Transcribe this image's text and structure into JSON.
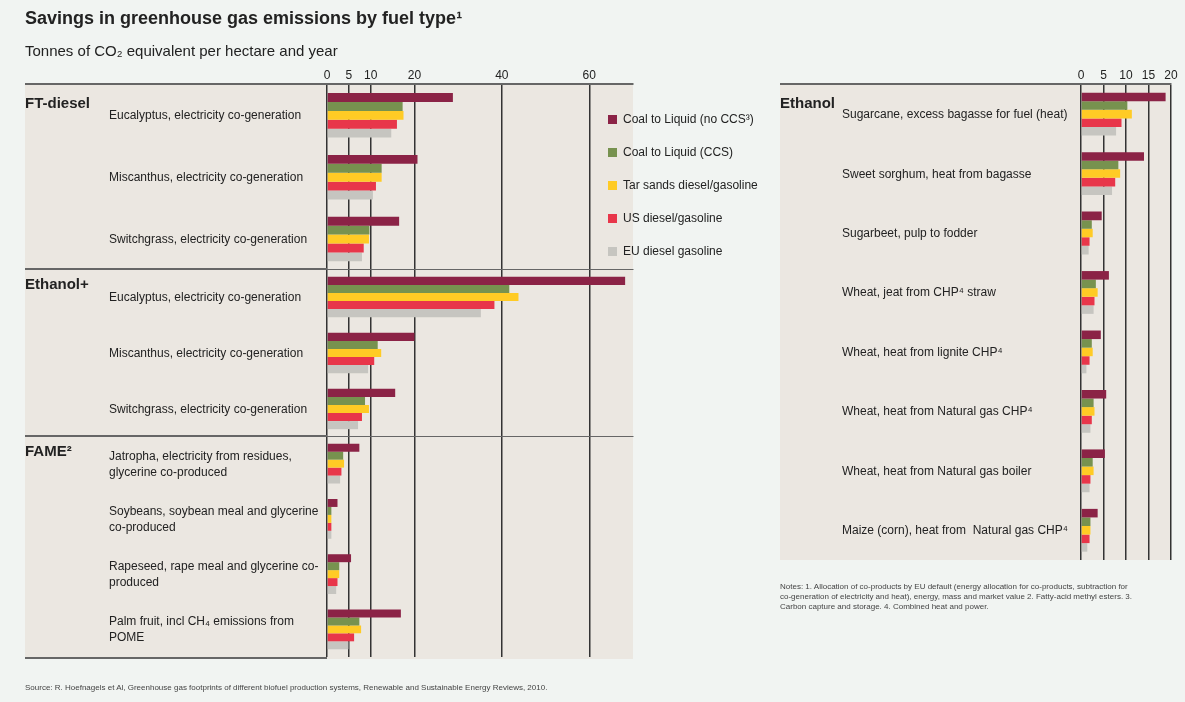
{
  "chart_data": [
    {
      "type": "bar",
      "orientation": "horizontal",
      "title": "Savings in greenhouse gas emissions by fuel type¹",
      "subtitle": "Tonnes of CO₂ equivalent per hectare and year",
      "ylabel": "FT-diesel",
      "categories": [
        "Eucalyptus, electricity co-generation",
        "Miscanthus, electricity co-generation",
        "Switchgrass, electricity co-generation"
      ],
      "series": [
        {
          "name": "Coal to Liquid (no CCS³)",
          "color": "#8b2346",
          "values": [
            28.8,
            20.7,
            16.5
          ]
        },
        {
          "name": "Coal to Liquid (CCS)",
          "color": "#77924f",
          "values": [
            17.3,
            12.5,
            9.7
          ]
        },
        {
          "name": "Tar sands diesel/gasoline",
          "color": "#ffcb25",
          "values": [
            17.5,
            12.5,
            9.6
          ]
        },
        {
          "name": "US diesel/gasoline",
          "color": "#e8364a",
          "values": [
            16.0,
            11.2,
            8.4
          ]
        },
        {
          "name": "EU diesel gasoline",
          "color": "#c6c5c0",
          "values": [
            14.7,
            10.5,
            8.0
          ]
        }
      ],
      "xlim": [
        0,
        70
      ],
      "xticks": [
        0,
        5,
        10,
        20,
        40,
        60
      ],
      "grid": "x",
      "legend": "right"
    },
    {
      "type": "bar",
      "orientation": "horizontal",
      "ylabel": "Ethanol+",
      "categories": [
        "Eucalyptus, electricity co-generation",
        "Miscanthus, electricity co-generation",
        "Switchgrass, electricity co-generation"
      ],
      "series": [
        {
          "color": "#8b2346",
          "values": [
            68.2,
            20.0,
            15.6
          ]
        },
        {
          "color": "#77924f",
          "values": [
            41.7,
            11.6,
            8.7
          ]
        },
        {
          "color": "#ffcb25",
          "values": [
            43.8,
            12.4,
            9.6
          ]
        },
        {
          "color": "#e8364a",
          "values": [
            38.3,
            10.8,
            8.0
          ]
        },
        {
          "color": "#c6c5c0",
          "values": [
            35.2,
            9.4,
            7.1
          ]
        }
      ],
      "xlim": [
        0,
        70
      ],
      "xticks": [
        0,
        5,
        10,
        20,
        40,
        60
      ],
      "grid": "x",
      "tick_labels": "y"
    },
    {
      "type": "bar",
      "orientation": "horizontal",
      "ylabel": "FAME²",
      "categories": [
        "Jatropha, electricity from residues, glycerine co-produced",
        "Soybeans, soybean meal and glycerine co-produced",
        "Rapeseed, rape meal and glycerine co-produced",
        "Palm fruit, incl CH₄ emissions from POME"
      ],
      "series": [
        {
          "color": "#8b2346",
          "values": [
            7.4,
            2.4,
            5.5,
            16.9
          ]
        },
        {
          "color": "#77924f",
          "values": [
            3.7,
            1.0,
            2.8,
            7.4
          ]
        },
        {
          "color": "#ffcb25",
          "values": [
            3.9,
            1.0,
            2.8,
            7.8
          ]
        },
        {
          "color": "#e8364a",
          "values": [
            3.3,
            1.0,
            2.4,
            6.2
          ]
        },
        {
          "color": "#c6c5c0",
          "values": [
            3.0,
            1.0,
            2.1,
            4.9
          ]
        }
      ],
      "xlim": [
        0,
        70
      ],
      "xticks": [
        0,
        5,
        10,
        20,
        40,
        60
      ],
      "grid": "x",
      "tick_labels": "y",
      "annotations": [
        "Source: R. Hoefnagels et Al, Greenhouse gas footprints of different biofuel production systems, Renewable and Sustainable Energy Reviews, 2010."
      ]
    },
    {
      "type": "bar",
      "orientation": "horizontal",
      "ylabel": "Ethanol",
      "categories": [
        "Sugarcane, excess bagasse for fuel (heat)",
        "Sweet sorghum, heat from bagasse",
        "Sugarbeet, pulp to fodder",
        "Wheat, jeat from CHP⁴ straw",
        "Wheat, heat from lignite CHP⁴",
        "Wheat, heat from Natural gas CHP⁴",
        "Wheat, heat from Natural gas boiler",
        "Maize (corn), heat from  Natural gas CHP⁴"
      ],
      "series": [
        {
          "color": "#8b2346",
          "values": [
            18.8,
            14.0,
            4.6,
            6.2,
            4.4,
            5.6,
            5.3,
            3.7
          ]
        },
        {
          "color": "#77924f",
          "values": [
            10.3,
            8.3,
            2.4,
            3.3,
            2.4,
            2.8,
            2.6,
            2.1
          ]
        },
        {
          "color": "#ffcb25",
          "values": [
            11.3,
            8.7,
            2.6,
            3.7,
            2.6,
            3.0,
            2.8,
            2.1
          ]
        },
        {
          "color": "#e8364a",
          "values": [
            9.0,
            7.6,
            1.9,
            3.0,
            1.9,
            2.4,
            2.1,
            1.9
          ]
        },
        {
          "color": "#c6c5c0",
          "values": [
            7.8,
            6.9,
            1.7,
            2.8,
            1.2,
            2.1,
            1.9,
            1.4
          ]
        }
      ],
      "xlim": [
        0,
        20
      ],
      "xticks": [
        0,
        5,
        10,
        15,
        20
      ],
      "grid": "x",
      "annotations": [
        "Notes: 1. Allocation of co-products by EU default (energy allocation for co-products, subtraction for co-generation of electricity and heat), energy, mass and market value 2. Fatty-acid methyl esters. 3. Carbon capture and storage. 4. Combined heat and power."
      ]
    }
  ]
}
